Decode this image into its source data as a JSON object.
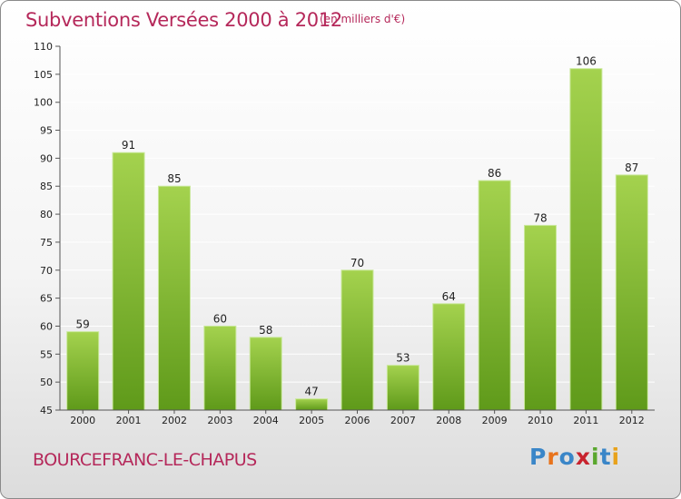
{
  "header": {
    "title": "Subventions Versées 2000 à 2012",
    "unit_note": "(en milliers d'€)"
  },
  "footer": {
    "place_name": "BOURCEFRANC-LE-CHAPUS",
    "logo_text": "Proxiti",
    "logo_colors": [
      "#3a86c8",
      "#e8731c",
      "#3a86c8",
      "#c8232e",
      "#5aa72e",
      "#3a86c8",
      "#e8a21c"
    ]
  },
  "colors": {
    "title": "#b5285a",
    "bar_light": "#a4d24e",
    "bar_dark": "#5f9a1a",
    "grid": "#ffffff",
    "axis": "#555555"
  },
  "chart_data": {
    "type": "bar",
    "categories": [
      "2000",
      "2001",
      "2002",
      "2003",
      "2004",
      "2005",
      "2006",
      "2007",
      "2008",
      "2009",
      "2010",
      "2011",
      "2012"
    ],
    "values": [
      59,
      91,
      85,
      60,
      58,
      47,
      70,
      53,
      64,
      86,
      78,
      106,
      87
    ],
    "title": "Subventions Versées 2000 à 2012",
    "ylim": [
      45,
      110
    ],
    "yticks": [
      45,
      50,
      55,
      60,
      65,
      70,
      75,
      80,
      85,
      90,
      95,
      100,
      105,
      110
    ],
    "data_labels": true,
    "grid": true
  }
}
